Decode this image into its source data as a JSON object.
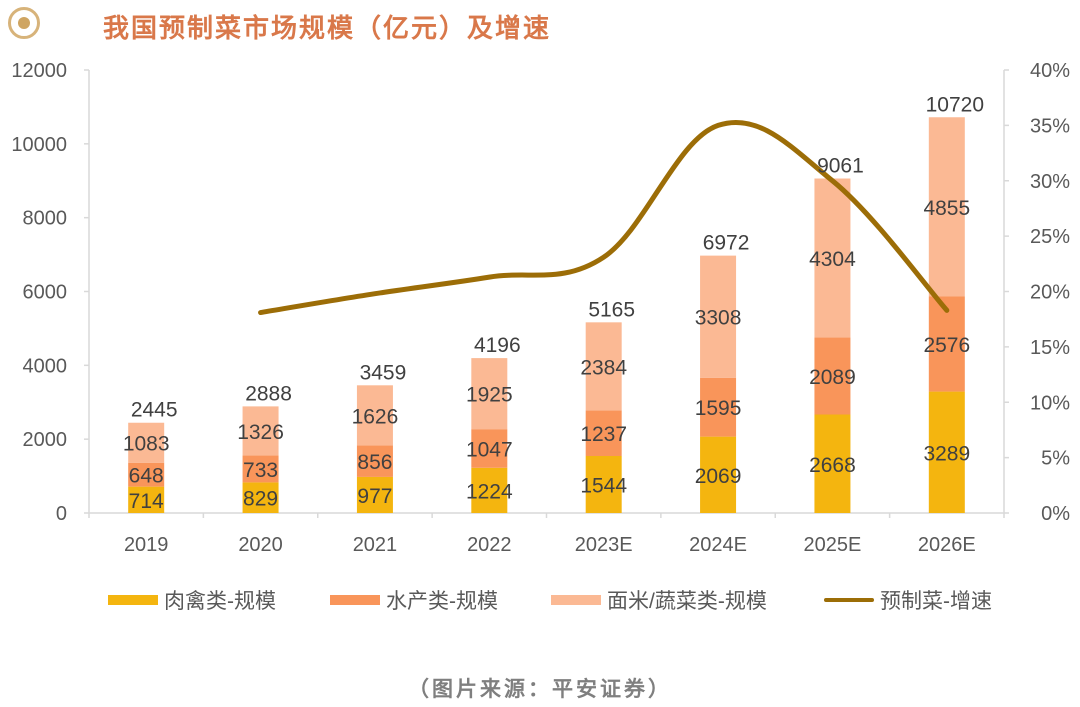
{
  "header": {
    "logo_icon": "circle-target-icon",
    "title": "我国预制菜市场规模（亿元）及增速"
  },
  "chart_data": {
    "type": "bar",
    "stacked": true,
    "title": "我国预制菜市场规模（亿元）及增速",
    "categories": [
      "2019",
      "2020",
      "2021",
      "2022",
      "2023E",
      "2024E",
      "2025E",
      "2026E"
    ],
    "series": [
      {
        "name": "肉禽类-规模",
        "type": "bar",
        "axis": "left",
        "color": "#F4B50F",
        "values": [
          714,
          829,
          977,
          1224,
          1544,
          2069,
          2668,
          3289
        ]
      },
      {
        "name": "水产类-规模",
        "type": "bar",
        "axis": "left",
        "color": "#F9955A",
        "values": [
          648,
          733,
          856,
          1047,
          1237,
          1595,
          2089,
          2576
        ]
      },
      {
        "name": "面米/蔬菜类-规模",
        "type": "bar",
        "axis": "left",
        "color": "#FBB994",
        "values": [
          1083,
          1326,
          1626,
          1925,
          2384,
          3308,
          4304,
          4855
        ]
      },
      {
        "name": "预制菜-增速",
        "type": "line",
        "axis": "right",
        "color": "#9C6D07",
        "values": [
          null,
          18.1,
          19.8,
          21.3,
          23.1,
          35.0,
          30.0,
          18.3
        ]
      }
    ],
    "totals": [
      2445,
      2888,
      3459,
      4196,
      5165,
      6972,
      9061,
      10720
    ],
    "y_left": {
      "min": 0,
      "max": 12000,
      "step": 2000,
      "ticks": [
        "0",
        "2000",
        "4000",
        "6000",
        "8000",
        "10000",
        "12000"
      ]
    },
    "y_right": {
      "min": 0,
      "max": 40,
      "step": 5,
      "ticks": [
        "0%",
        "5%",
        "10%",
        "15%",
        "20%",
        "25%",
        "30%",
        "35%",
        "40%"
      ]
    },
    "xlabel": "",
    "ylabel": "",
    "grid": false,
    "legend_position": "bottom"
  },
  "footer": {
    "source": "（图片来源：平安证券）"
  }
}
